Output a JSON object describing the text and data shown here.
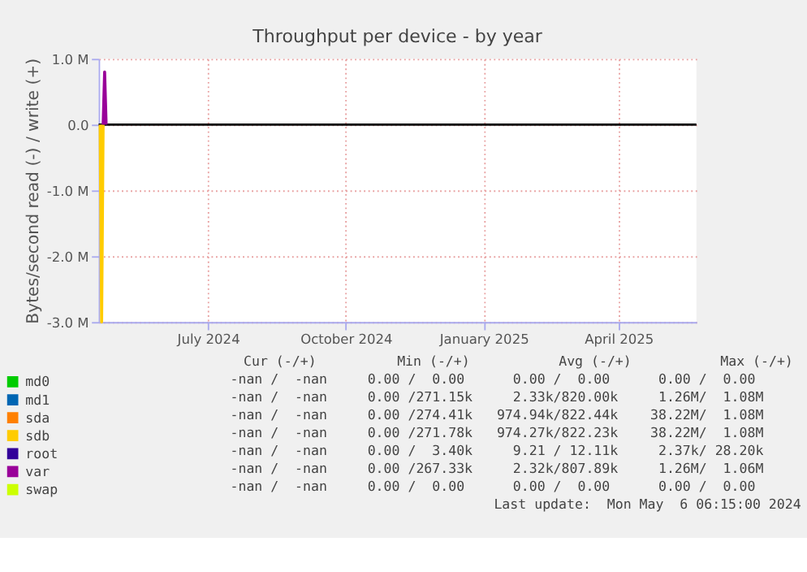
{
  "chart_data": {
    "type": "line",
    "title": "Throughput per device - by year",
    "ylabel": "Bytes/second read (-) / write (+)",
    "xlim": [
      "2024-04-19",
      "2025-05-23"
    ],
    "xticks": [
      {
        "value": "2024-07-01",
        "label": "July 2024"
      },
      {
        "value": "2024-10-01",
        "label": "October 2024"
      },
      {
        "value": "2025-01-01",
        "label": "January 2025"
      },
      {
        "value": "2025-04-01",
        "label": "April 2025"
      }
    ],
    "ylim": [
      -3000000,
      1000000
    ],
    "yticks": [
      {
        "value": -3000000,
        "label": "-3.0 M"
      },
      {
        "value": -2000000,
        "label": "-2.0 M"
      },
      {
        "value": -1000000,
        "label": "-1.0 M"
      },
      {
        "value": 0,
        "label": "0.0"
      },
      {
        "value": 1000000,
        "label": "1.0 M"
      }
    ],
    "grid": true,
    "legend": "bottom",
    "marker": "none",
    "line_style": "solid",
    "ref_lines": [
      {
        "axis": "y",
        "value": 0,
        "color": "#000000"
      }
    ],
    "series": [
      {
        "name": "md0",
        "color": "#00cc00"
      },
      {
        "name": "md1",
        "color": "#0066b3"
      },
      {
        "name": "sda",
        "color": "#ff8000"
      },
      {
        "name": "sdb",
        "color": "#ffcc00",
        "x": [
          "2024-04-20",
          "2024-04-21",
          "2024-04-22"
        ],
        "values": [
          0,
          -3000000,
          0
        ]
      },
      {
        "name": "root",
        "color": "#330099"
      },
      {
        "name": "var",
        "color": "#990099",
        "x": [
          "2024-04-22",
          "2024-04-23",
          "2024-04-24"
        ],
        "values": [
          0,
          800000,
          0
        ]
      },
      {
        "name": "swap",
        "color": "#ccff00"
      }
    ],
    "annotations": [
      "Cur (-/+)          Min (-/+)           Avg (-/+)           Max (-/+)",
      "-nan /  -nan     0.00 /  0.00      0.00 /  0.00      0.00 /  0.00",
      "-nan /  -nan     0.00 /271.15k     2.33k/820.00k     1.26M/  1.08M",
      "-nan /  -nan     0.00 /274.41k   974.94k/822.44k    38.22M/  1.08M",
      "-nan /  -nan     0.00 /271.78k   974.27k/822.23k    38.22M/  1.08M",
      "-nan /  -nan     0.00 /  3.40k     9.21 / 12.11k     2.37k/ 28.20k",
      "-nan /  -nan     0.00 /267.33k     2.32k/807.89k     1.26M/  1.06M",
      "-nan /  -nan     0.00 /  0.00      0.00 /  0.00      0.00 /  0.00",
      "Last update:  Mon May  6 06:15:00 2024"
    ]
  }
}
